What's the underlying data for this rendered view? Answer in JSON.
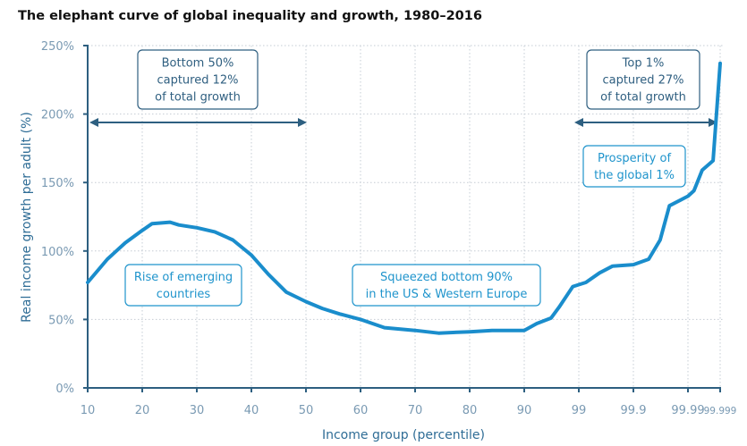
{
  "chart_data": {
    "type": "line",
    "title": "The elephant curve of global inequality and growth, 1980–2016",
    "xlabel": "Income group (percentile)",
    "ylabel": "Real income growth per adult (%)",
    "ylim": [
      0,
      250
    ],
    "yticks": [
      0,
      50,
      100,
      150,
      200,
      250
    ],
    "ytick_labels": [
      "0%",
      "50%",
      "100%",
      "150%",
      "200%",
      "250%"
    ],
    "xtick_labels": [
      "10",
      "20",
      "30",
      "40",
      "50",
      "60",
      "70",
      "80",
      "90",
      "99",
      "99.9",
      "99.99",
      "99.999"
    ],
    "x_scale_note": "ordinal tick positions; values between ticks expressed as fractional tick index",
    "grid": true,
    "series": [
      {
        "name": "Real income growth",
        "color": "#1a8dcc",
        "points": [
          {
            "t": 0.0,
            "y": 77
          },
          {
            "t": 0.36,
            "y": 94
          },
          {
            "t": 0.69,
            "y": 106
          },
          {
            "t": 1.0,
            "y": 115
          },
          {
            "t": 1.18,
            "y": 120
          },
          {
            "t": 1.51,
            "y": 121
          },
          {
            "t": 1.67,
            "y": 119
          },
          {
            "t": 2.0,
            "y": 117
          },
          {
            "t": 2.33,
            "y": 114
          },
          {
            "t": 2.66,
            "y": 108
          },
          {
            "t": 3.0,
            "y": 97
          },
          {
            "t": 3.31,
            "y": 83
          },
          {
            "t": 3.64,
            "y": 70
          },
          {
            "t": 4.0,
            "y": 63
          },
          {
            "t": 4.3,
            "y": 58
          },
          {
            "t": 4.62,
            "y": 54
          },
          {
            "t": 5.0,
            "y": 50
          },
          {
            "t": 5.44,
            "y": 44
          },
          {
            "t": 6.0,
            "y": 42
          },
          {
            "t": 6.43,
            "y": 40
          },
          {
            "t": 7.0,
            "y": 41
          },
          {
            "t": 7.41,
            "y": 42
          },
          {
            "t": 8.0,
            "y": 42
          },
          {
            "t": 8.23,
            "y": 47
          },
          {
            "t": 8.49,
            "y": 51
          },
          {
            "t": 8.64,
            "y": 59
          },
          {
            "t": 8.89,
            "y": 74
          },
          {
            "t": 9.13,
            "y": 77
          },
          {
            "t": 9.38,
            "y": 84
          },
          {
            "t": 9.62,
            "y": 89
          },
          {
            "t": 10.0,
            "y": 90
          },
          {
            "t": 10.28,
            "y": 94
          },
          {
            "t": 10.49,
            "y": 108
          },
          {
            "t": 10.66,
            "y": 133
          },
          {
            "t": 11.0,
            "y": 140
          },
          {
            "t": 11.11,
            "y": 144
          },
          {
            "t": 11.26,
            "y": 159
          },
          {
            "t": 11.46,
            "y": 166
          },
          {
            "t": 11.59,
            "y": 237
          }
        ]
      }
    ],
    "annotations": [
      {
        "id": "bottom50",
        "style": "dark",
        "lines": [
          "Bottom 50%",
          "captured 12%",
          "of total growth"
        ]
      },
      {
        "id": "top1",
        "style": "dark",
        "lines": [
          "Top 1%",
          "captured 27%",
          "of total growth"
        ]
      },
      {
        "id": "emerging",
        "style": "light",
        "lines": [
          "Rise of emerging",
          "countries"
        ]
      },
      {
        "id": "squeezed",
        "style": "light",
        "lines": [
          "Squeezed bottom 90%",
          "in the US & Western Europe"
        ]
      },
      {
        "id": "prosperity",
        "style": "light",
        "lines": [
          "Prosperity of",
          "the global 1%"
        ]
      }
    ],
    "colors": {
      "line": "#1a8dcc",
      "axis": "#2d5f80",
      "grid": "#c5ccd4",
      "tick_label": "#7a9ab3",
      "axis_title": "#2f6d96",
      "annotation_dark": "#2f5f80",
      "annotation_light": "#1f94cc"
    }
  }
}
